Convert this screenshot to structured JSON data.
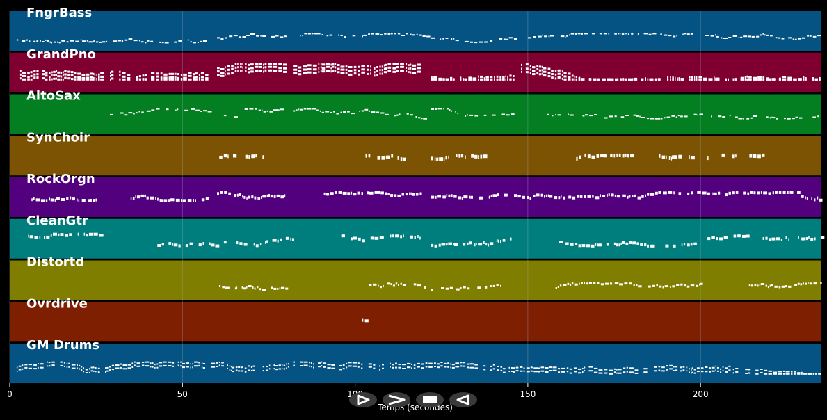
{
  "axis": {
    "title": "Temps (secondes)",
    "ticks": [
      0,
      50,
      100,
      150,
      200
    ],
    "xmax": 235
  },
  "colors": {
    "background": "#000000",
    "note": "#ffffff",
    "gridline": "#9aa9bb"
  },
  "tracks": [
    {
      "name": "FngrBass",
      "color": "#045382",
      "segments": [
        [
          2,
          28
        ],
        [
          30,
          56
        ],
        [
          60,
          80
        ],
        [
          84,
          100
        ],
        [
          102,
          146
        ],
        [
          150,
          198
        ],
        [
          200,
          235
        ]
      ],
      "density": 0.85,
      "pitchRange": [
        0.55,
        0.78
      ],
      "thickness": 2,
      "polyphony": 1
    },
    {
      "name": "GrandPno",
      "color": "#7f0030",
      "segments": [
        [
          3,
          27
        ],
        [
          29,
          57
        ],
        [
          60,
          80
        ],
        [
          82,
          118
        ],
        [
          122,
          146
        ],
        [
          148,
          235
        ]
      ],
      "density": 0.95,
      "pitchRange": [
        0.25,
        0.65
      ],
      "thickness": 3,
      "polyphony": 3
    },
    {
      "name": "AltoSax",
      "color": "#037e21",
      "segments": [
        [
          29,
          60
        ],
        [
          62,
          66
        ],
        [
          68,
          80
        ],
        [
          82,
          120
        ],
        [
          122,
          146
        ],
        [
          155,
          170
        ],
        [
          172,
          200
        ],
        [
          203,
          235
        ]
      ],
      "density": 0.8,
      "pitchRange": [
        0.35,
        0.6
      ],
      "thickness": 2,
      "polyphony": 1
    },
    {
      "name": "SynChoir",
      "color": "#7c5302",
      "segments": [
        [
          60,
          75
        ],
        [
          103,
          114
        ],
        [
          122,
          138
        ],
        [
          164,
          180
        ],
        [
          188,
          198
        ],
        [
          202,
          218
        ]
      ],
      "density": 0.7,
      "pitchRange": [
        0.45,
        0.55
      ],
      "thickness": 5,
      "polyphony": 1
    },
    {
      "name": "RockOrgn",
      "color": "#52007e",
      "segments": [
        [
          5,
          26
        ],
        [
          35,
          58
        ],
        [
          60,
          80
        ],
        [
          90,
          119
        ],
        [
          122,
          144
        ],
        [
          146,
          229
        ],
        [
          229,
          235
        ]
      ],
      "density": 0.9,
      "pitchRange": [
        0.35,
        0.55
      ],
      "thickness": 4,
      "polyphony": 1
    },
    {
      "name": "CleanGtr",
      "color": "#007e7e",
      "segments": [
        [
          5,
          26
        ],
        [
          42,
          60
        ],
        [
          62,
          82
        ],
        [
          96,
          119
        ],
        [
          122,
          145
        ],
        [
          158,
          200
        ],
        [
          202,
          235
        ]
      ],
      "density": 0.75,
      "pitchRange": [
        0.35,
        0.65
      ],
      "thickness": 4,
      "polyphony": 1
    },
    {
      "name": "Distortd",
      "color": "#7f7e00",
      "segments": [
        [
          60,
          80
        ],
        [
          104,
          120
        ],
        [
          122,
          142
        ],
        [
          158,
          200
        ],
        [
          213,
          235
        ]
      ],
      "density": 0.9,
      "pitchRange": [
        0.55,
        0.72
      ],
      "thickness": 3,
      "polyphony": 1
    },
    {
      "name": "Ovrdrive",
      "color": "#7f1f01",
      "segments": [
        [
          102,
          104
        ]
      ],
      "density": 1.0,
      "pitchRange": [
        0.4,
        0.45
      ],
      "thickness": 4,
      "polyphony": 1
    },
    {
      "name": "GM Drums",
      "color": "#045382",
      "segments": [
        [
          2,
          235
        ]
      ],
      "density": 0.9,
      "pitchRange": [
        0.45,
        0.75
      ],
      "thickness": 2,
      "polyphony": 2
    }
  ],
  "controls": [
    {
      "name": "play-button",
      "icon": "play-icon"
    },
    {
      "name": "fast-forward-button",
      "icon": "next-icon"
    },
    {
      "name": "stop-button",
      "icon": "stop-icon"
    },
    {
      "name": "rewind-button",
      "icon": "rewind-icon"
    }
  ]
}
